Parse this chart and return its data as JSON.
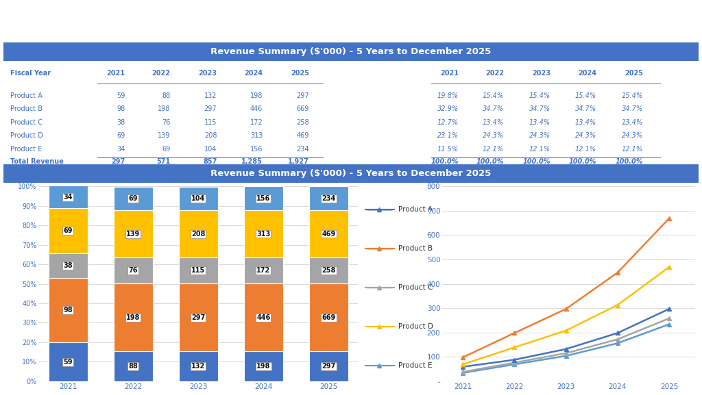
{
  "title": "Revenue Summary ($'000) - 5 Years to December 2025",
  "years": [
    2021,
    2022,
    2023,
    2024,
    2025
  ],
  "products": [
    "Product A",
    "Product B",
    "Product C",
    "Product D",
    "Product E"
  ],
  "values": {
    "Product A": [
      59,
      88,
      132,
      198,
      297
    ],
    "Product B": [
      98,
      198,
      297,
      446,
      669
    ],
    "Product C": [
      38,
      76,
      115,
      172,
      258
    ],
    "Product D": [
      69,
      139,
      208,
      313,
      469
    ],
    "Product E": [
      34,
      69,
      104,
      156,
      234
    ]
  },
  "totals": [
    297,
    571,
    857,
    1285,
    1927
  ],
  "percentages": {
    "Product A": [
      "19.8%",
      "15.4%",
      "15.4%",
      "15.4%",
      "15.4%"
    ],
    "Product B": [
      "32.9%",
      "34.7%",
      "34.7%",
      "34.7%",
      "34.7%"
    ],
    "Product C": [
      "12.7%",
      "13.4%",
      "13.4%",
      "13.4%",
      "13.4%"
    ],
    "Product D": [
      "23.1%",
      "24.3%",
      "24.3%",
      "24.3%",
      "24.3%"
    ],
    "Product E": [
      "11.5%",
      "12.1%",
      "12.1%",
      "12.1%",
      "12.1%"
    ]
  },
  "bar_colors": {
    "Product A": "#4472C4",
    "Product B": "#ED7D31",
    "Product C": "#A5A5A5",
    "Product D": "#FFC000",
    "Product E": "#5B9BD5"
  },
  "line_colors": {
    "Product A": "#4472C4",
    "Product B": "#ED7D31",
    "Product C": "#A5A5A5",
    "Product D": "#FFC000",
    "Product E": "#5B9BD5"
  },
  "header_bg": "#4472C4",
  "header_fg": "#FFFFFF",
  "table_fg": "#4472C4",
  "bg_color": "#FFFFFF",
  "grid_color": "#CCCCCC",
  "stack_order": [
    "Product A",
    "Product C",
    "Product D",
    "Product E",
    "Product B"
  ],
  "legend_order": [
    "Product A",
    "Product B",
    "Product C",
    "Product D",
    "Product E"
  ]
}
